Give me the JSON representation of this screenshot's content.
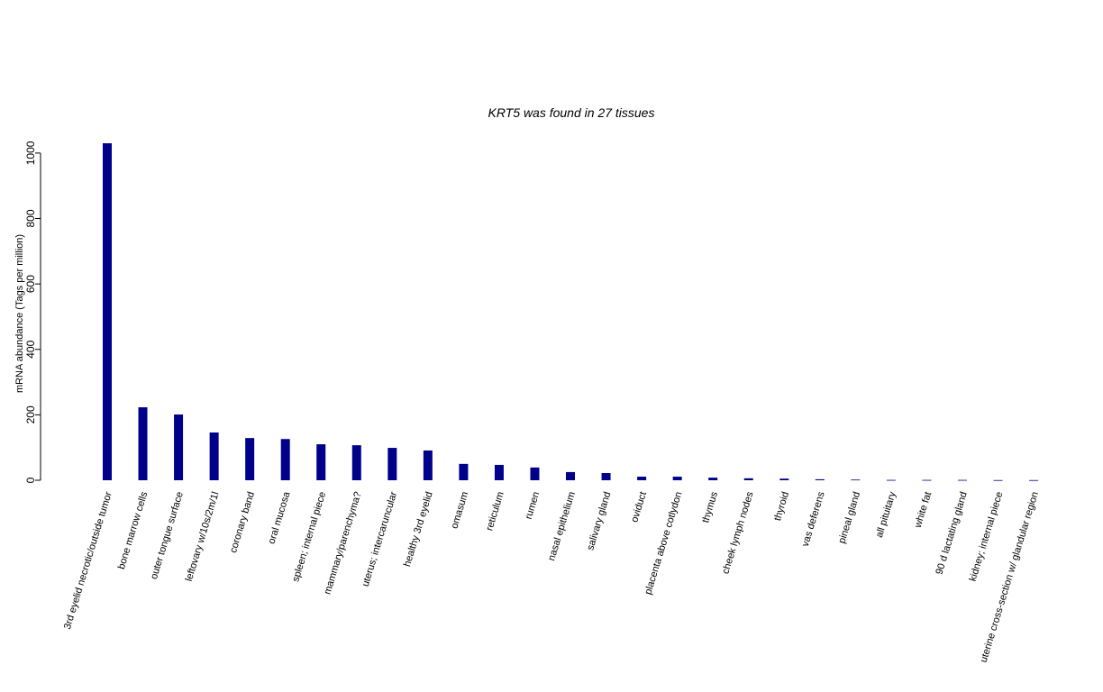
{
  "chart_data": {
    "type": "bar",
    "title": "KRT5  was found in  27  tissues",
    "y_label": "mRNA abundance (Tags per million)",
    "categories": [
      "3rd eyelid necrotic/outside tumor",
      "bone marrow cells",
      "outer tongue surface",
      "leftovary w/10s/2m/1l",
      "coronary band",
      "oral mucosa",
      "spleen; internal piece",
      "mammary/parenchyma?",
      "uterus; intercaruncular",
      "healthy 3rd eyelid",
      "omasum",
      "reticulum",
      "rumen",
      "nasal epithelium",
      "salivary gland",
      "oviduct",
      "placenta above cotlydon",
      "thymus",
      "cheek lymph nodes",
      "thyroid",
      "vas deferens",
      "pineal gland",
      "all pituitary",
      "white fat",
      "90 d lactating gland",
      "kidney; internal piece",
      "uterine cross-section w/ glandular region"
    ],
    "values": [
      1030,
      223,
      201,
      146,
      129,
      126,
      110,
      107,
      99,
      91,
      50,
      47,
      39,
      25,
      22,
      11,
      11,
      8,
      6,
      5,
      3,
      2,
      1,
      1,
      1,
      0.5,
      0.5
    ],
    "color": "#00008b",
    "ylim": [
      0,
      1030
    ],
    "yticks": [
      0,
      200,
      400,
      600,
      800,
      1000
    ]
  }
}
